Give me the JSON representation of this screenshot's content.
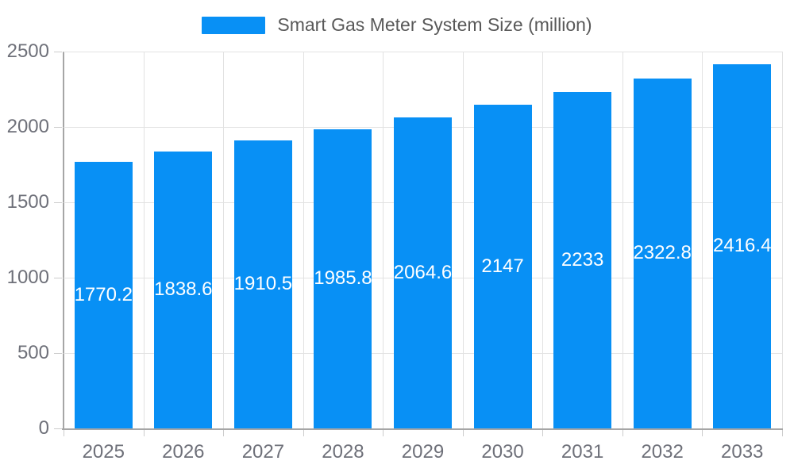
{
  "legend": {
    "label": "Smart Gas Meter System Size (million)"
  },
  "colors": {
    "bar": "#0890f5",
    "grid_line": "#e2e2e2",
    "axis_line": "#a6a6a6",
    "tick": "#cccccc",
    "axis_text": "#6e7079",
    "legend_text": "#595959",
    "bar_label_text": "#ffffff",
    "background": "#ffffff"
  },
  "chart_data": {
    "type": "bar",
    "title": "Smart Gas Meter System Size (million)",
    "categories": [
      "2025",
      "2026",
      "2027",
      "2028",
      "2029",
      "2030",
      "2031",
      "2032",
      "2033"
    ],
    "values": [
      1770.2,
      1838.6,
      1910.5,
      1985.8,
      2064.6,
      2147,
      2233,
      2322.8,
      2416.4
    ],
    "value_labels": [
      "1770.2",
      "1838.6",
      "1910.5",
      "1985.8",
      "2064.6",
      "2147",
      "2233",
      "2322.8",
      "2416.4"
    ],
    "xlabel": "",
    "ylabel": "",
    "ylim": [
      0,
      2500
    ],
    "yticks": [
      0,
      500,
      1000,
      1500,
      2000,
      2500
    ],
    "grid": true,
    "legend_position": "top-center",
    "value_label_position": "inside-middle"
  }
}
